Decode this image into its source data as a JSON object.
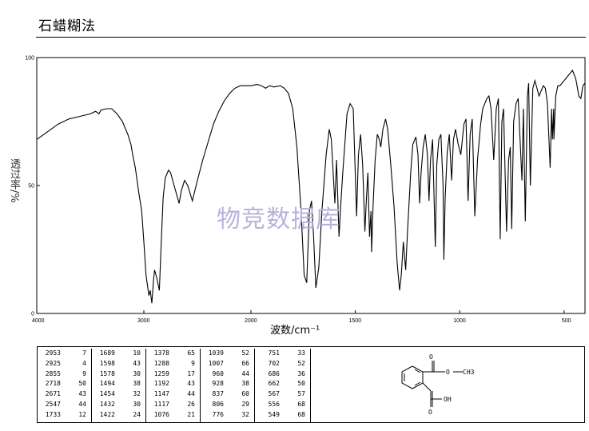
{
  "page": {
    "title": "石蜡糊法",
    "watermark": "物竞数据库"
  },
  "chart_data": {
    "type": "line",
    "xlabel": "波数/cm⁻¹",
    "ylabel": "透过率/%",
    "xlim": [
      4000,
      400
    ],
    "ylim": [
      0,
      100
    ],
    "xticks": [
      "4000",
      "3000",
      "2000",
      "1500",
      "1000",
      "500"
    ],
    "yticks": [
      "0",
      "50",
      "100"
    ],
    "x_reversed": true,
    "x_scale_break": 2000,
    "grid": false,
    "series": [
      {
        "points": [
          [
            4000,
            68
          ],
          [
            3900,
            71
          ],
          [
            3800,
            74
          ],
          [
            3700,
            76
          ],
          [
            3600,
            77
          ],
          [
            3500,
            78
          ],
          [
            3450,
            79
          ],
          [
            3420,
            78
          ],
          [
            3400,
            79.5
          ],
          [
            3350,
            80
          ],
          [
            3300,
            80
          ],
          [
            3250,
            78
          ],
          [
            3200,
            75
          ],
          [
            3150,
            70
          ],
          [
            3120,
            66
          ],
          [
            3100,
            61
          ],
          [
            3080,
            57
          ],
          [
            3050,
            48
          ],
          [
            3020,
            40
          ],
          [
            3000,
            28
          ],
          [
            2980,
            15
          ],
          [
            2953,
            7
          ],
          [
            2940,
            9
          ],
          [
            2925,
            4
          ],
          [
            2910,
            13
          ],
          [
            2900,
            17
          ],
          [
            2880,
            14
          ],
          [
            2870,
            12
          ],
          [
            2855,
            9
          ],
          [
            2840,
            25
          ],
          [
            2820,
            45
          ],
          [
            2800,
            53
          ],
          [
            2770,
            56
          ],
          [
            2750,
            55
          ],
          [
            2718,
            50
          ],
          [
            2690,
            46
          ],
          [
            2671,
            43
          ],
          [
            2650,
            48
          ],
          [
            2620,
            52
          ],
          [
            2590,
            50
          ],
          [
            2547,
            44
          ],
          [
            2500,
            52
          ],
          [
            2450,
            60
          ],
          [
            2400,
            67
          ],
          [
            2350,
            74
          ],
          [
            2300,
            79
          ],
          [
            2250,
            83
          ],
          [
            2200,
            86
          ],
          [
            2150,
            88
          ],
          [
            2100,
            89
          ],
          [
            2050,
            89
          ],
          [
            2000,
            89
          ],
          [
            1970,
            89.5
          ],
          [
            1950,
            89
          ],
          [
            1930,
            88
          ],
          [
            1910,
            89
          ],
          [
            1890,
            88.5
          ],
          [
            1860,
            89
          ],
          [
            1840,
            88
          ],
          [
            1820,
            86
          ],
          [
            1800,
            80
          ],
          [
            1780,
            65
          ],
          [
            1760,
            40
          ],
          [
            1745,
            15
          ],
          [
            1733,
            12
          ],
          [
            1720,
            40
          ],
          [
            1710,
            44
          ],
          [
            1700,
            30
          ],
          [
            1689,
            10
          ],
          [
            1675,
            18
          ],
          [
            1660,
            40
          ],
          [
            1640,
            62
          ],
          [
            1625,
            72
          ],
          [
            1615,
            68
          ],
          [
            1598,
            43
          ],
          [
            1590,
            60
          ],
          [
            1578,
            30
          ],
          [
            1570,
            42
          ],
          [
            1560,
            55
          ],
          [
            1540,
            78
          ],
          [
            1525,
            82
          ],
          [
            1510,
            80
          ],
          [
            1494,
            38
          ],
          [
            1485,
            62
          ],
          [
            1475,
            70
          ],
          [
            1465,
            58
          ],
          [
            1454,
            32
          ],
          [
            1447,
            45
          ],
          [
            1440,
            55
          ],
          [
            1432,
            30
          ],
          [
            1425,
            40
          ],
          [
            1422,
            24
          ],
          [
            1415,
            42
          ],
          [
            1405,
            60
          ],
          [
            1395,
            70
          ],
          [
            1385,
            68
          ],
          [
            1378,
            65
          ],
          [
            1368,
            72
          ],
          [
            1355,
            76
          ],
          [
            1345,
            72
          ],
          [
            1330,
            58
          ],
          [
            1315,
            42
          ],
          [
            1300,
            20
          ],
          [
            1288,
            9
          ],
          [
            1280,
            15
          ],
          [
            1270,
            28
          ],
          [
            1259,
            17
          ],
          [
            1250,
            32
          ],
          [
            1235,
            55
          ],
          [
            1225,
            66
          ],
          [
            1210,
            69
          ],
          [
            1200,
            62
          ],
          [
            1192,
            43
          ],
          [
            1185,
            55
          ],
          [
            1175,
            65
          ],
          [
            1165,
            70
          ],
          [
            1155,
            62
          ],
          [
            1147,
            44
          ],
          [
            1140,
            60
          ],
          [
            1130,
            68
          ],
          [
            1117,
            26
          ],
          [
            1110,
            58
          ],
          [
            1100,
            68
          ],
          [
            1090,
            70
          ],
          [
            1080,
            50
          ],
          [
            1076,
            21
          ],
          [
            1070,
            45
          ],
          [
            1060,
            63
          ],
          [
            1050,
            70
          ],
          [
            1039,
            52
          ],
          [
            1030,
            68
          ],
          [
            1020,
            72
          ],
          [
            1007,
            66
          ],
          [
            995,
            62
          ],
          [
            980,
            74
          ],
          [
            970,
            76
          ],
          [
            960,
            44
          ],
          [
            950,
            70
          ],
          [
            940,
            76
          ],
          [
            928,
            38
          ],
          [
            915,
            60
          ],
          [
            900,
            74
          ],
          [
            890,
            80
          ],
          [
            880,
            82
          ],
          [
            870,
            84
          ],
          [
            860,
            85
          ],
          [
            850,
            80
          ],
          [
            837,
            60
          ],
          [
            825,
            80
          ],
          [
            815,
            84
          ],
          [
            806,
            29
          ],
          [
            798,
            75
          ],
          [
            790,
            80
          ],
          [
            776,
            32
          ],
          [
            766,
            60
          ],
          [
            758,
            65
          ],
          [
            751,
            33
          ],
          [
            742,
            75
          ],
          [
            730,
            82
          ],
          [
            720,
            84
          ],
          [
            702,
            52
          ],
          [
            695,
            80
          ],
          [
            686,
            36
          ],
          [
            676,
            85
          ],
          [
            670,
            90
          ],
          [
            662,
            50
          ],
          [
            650,
            88
          ],
          [
            640,
            91
          ],
          [
            630,
            88
          ],
          [
            620,
            85
          ],
          [
            600,
            89
          ],
          [
            590,
            88
          ],
          [
            580,
            82
          ],
          [
            567,
            57
          ],
          [
            560,
            80
          ],
          [
            556,
            68
          ],
          [
            550,
            80
          ],
          [
            549,
            68
          ],
          [
            540,
            85
          ],
          [
            530,
            89
          ],
          [
            520,
            89
          ],
          [
            510,
            90
          ],
          [
            500,
            91
          ],
          [
            490,
            92
          ],
          [
            480,
            93
          ],
          [
            470,
            94
          ],
          [
            460,
            95
          ],
          [
            445,
            92
          ],
          [
            440,
            90
          ],
          [
            430,
            85
          ],
          [
            420,
            84
          ],
          [
            410,
            89
          ],
          [
            400,
            90
          ]
        ]
      }
    ]
  },
  "peak_table": {
    "columns": [
      [
        [
          "2953",
          "7"
        ],
        [
          "2925",
          "4"
        ],
        [
          "2855",
          "9"
        ],
        [
          "2718",
          "50"
        ],
        [
          "2671",
          "43"
        ],
        [
          "2547",
          "44"
        ],
        [
          "1733",
          "12"
        ]
      ],
      [
        [
          "1689",
          "10"
        ],
        [
          "1598",
          "43"
        ],
        [
          "1578",
          "30"
        ],
        [
          "1494",
          "38"
        ],
        [
          "1454",
          "32"
        ],
        [
          "1432",
          "30"
        ],
        [
          "1422",
          "24"
        ]
      ],
      [
        [
          "1378",
          "65"
        ],
        [
          "1288",
          "9"
        ],
        [
          "1259",
          "17"
        ],
        [
          "1192",
          "43"
        ],
        [
          "1147",
          "44"
        ],
        [
          "1117",
          "26"
        ],
        [
          "1076",
          "21"
        ]
      ],
      [
        [
          "1039",
          "52"
        ],
        [
          "1007",
          "66"
        ],
        [
          "960",
          "44"
        ],
        [
          "928",
          "38"
        ],
        [
          "837",
          "60"
        ],
        [
          "806",
          "29"
        ],
        [
          "776",
          "32"
        ]
      ],
      [
        [
          "751",
          "33"
        ],
        [
          "702",
          "52"
        ],
        [
          "686",
          "36"
        ],
        [
          "662",
          "50"
        ],
        [
          "567",
          "57"
        ],
        [
          "556",
          "68"
        ],
        [
          "549",
          "68"
        ]
      ]
    ]
  },
  "structure": {
    "labels": {
      "o_top": "O",
      "o_methyl": "O",
      "methyl": "CH3",
      "oh": "OH",
      "o_bottom": "O"
    }
  }
}
